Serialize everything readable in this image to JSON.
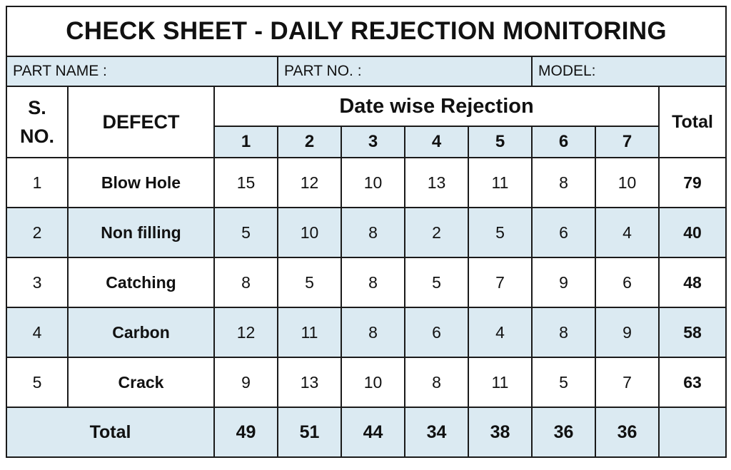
{
  "title": "CHECK SHEET - DAILY REJECTION MONITORING",
  "info": {
    "part_name": "PART NAME :",
    "part_no": "PART NO.  :",
    "model": "MODEL:"
  },
  "headers": {
    "sno": "S. NO.",
    "defect": "DEFECT",
    "date_wise": "Date wise Rejection",
    "total": "Total",
    "days": [
      "1",
      "2",
      "3",
      "4",
      "5",
      "6",
      "7"
    ]
  },
  "rows": [
    {
      "sno": "1",
      "defect": "Blow Hole",
      "values": [
        "15",
        "12",
        "10",
        "13",
        "11",
        "8",
        "10"
      ],
      "total": "79"
    },
    {
      "sno": "2",
      "defect": "Non filling",
      "values": [
        "5",
        "10",
        "8",
        "2",
        "5",
        "6",
        "4"
      ],
      "total": "40"
    },
    {
      "sno": "3",
      "defect": "Catching",
      "values": [
        "8",
        "5",
        "8",
        "5",
        "7",
        "9",
        "6"
      ],
      "total": "48"
    },
    {
      "sno": "4",
      "defect": "Carbon",
      "values": [
        "12",
        "11",
        "8",
        "6",
        "4",
        "8",
        "9"
      ],
      "total": "58"
    },
    {
      "sno": "5",
      "defect": "Crack",
      "values": [
        "9",
        "13",
        "10",
        "8",
        "11",
        "5",
        "7"
      ],
      "total": "63"
    }
  ],
  "footer": {
    "label": "Total",
    "values": [
      "49",
      "51",
      "44",
      "34",
      "38",
      "36",
      "36"
    ],
    "total": ""
  },
  "colors": {
    "shade": "#dbeaf2",
    "border": "#1a1a1a"
  }
}
